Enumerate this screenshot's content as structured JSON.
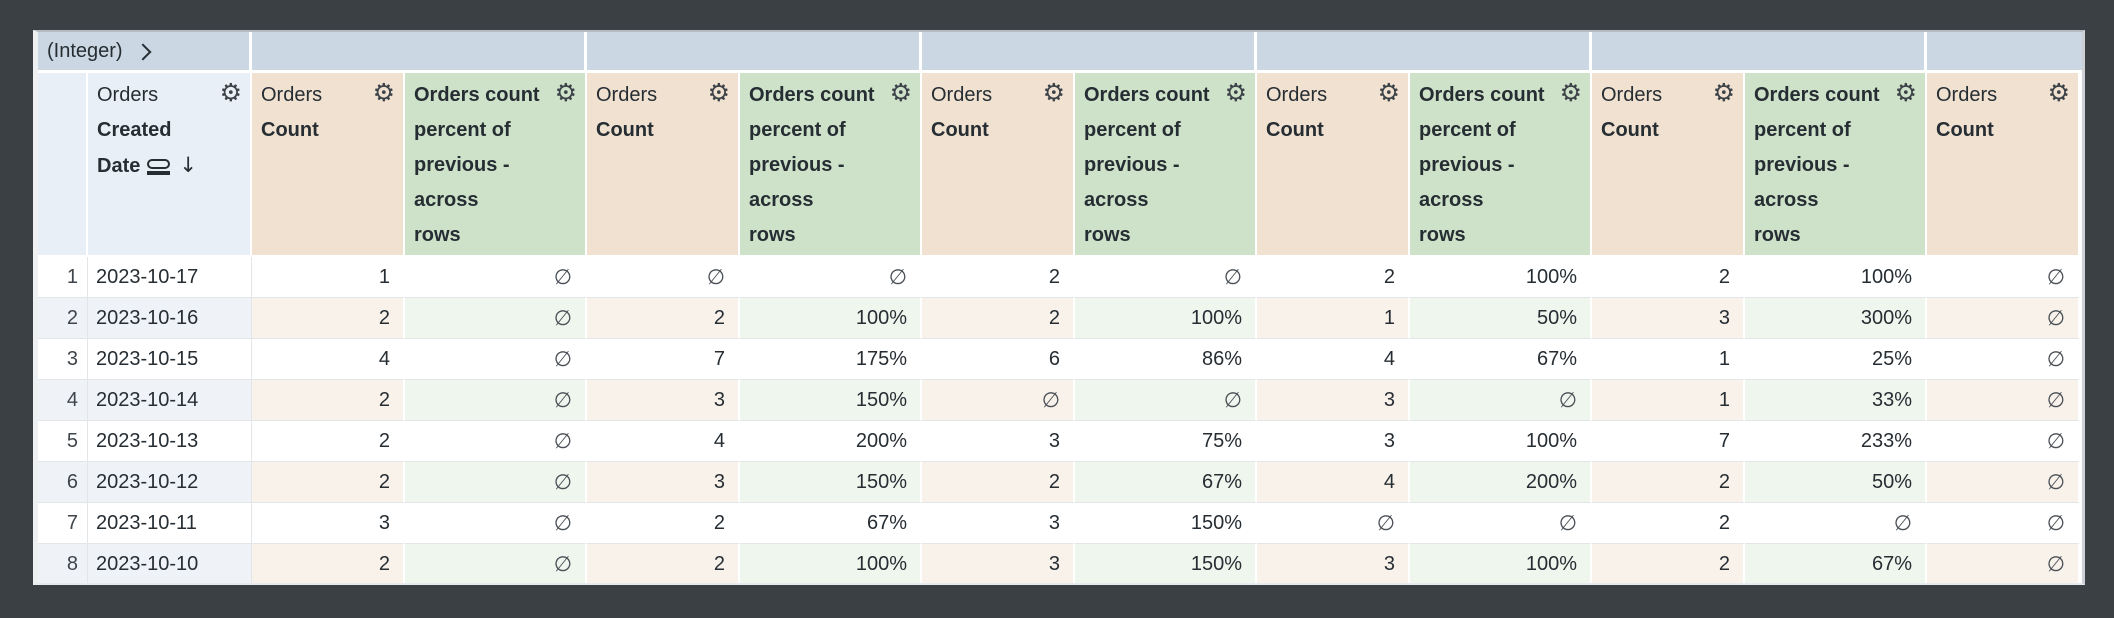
{
  "table": {
    "pivot": {
      "label": "(Integer)",
      "group_widths": [
        214,
        335,
        335,
        335,
        335,
        335,
        160
      ]
    },
    "header": {
      "dimension": {
        "view": "Orders",
        "field_lines": [
          "Created",
          "Date"
        ]
      },
      "measure": {
        "view": "Orders",
        "field": "Count"
      },
      "calc_lines": [
        "Orders count",
        "percent of",
        "previous -",
        "across",
        "rows"
      ]
    },
    "column_kinds": [
      "num",
      "date",
      "count",
      "pct",
      "count",
      "pct",
      "count",
      "pct",
      "count",
      "pct",
      "count",
      "pct",
      "count"
    ],
    "rows": [
      {
        "n": "1",
        "date": "2023-10-17",
        "values": [
          "1",
          "∅",
          "∅",
          "∅",
          "2",
          "∅",
          "2",
          "100%",
          "2",
          "100%",
          "∅"
        ]
      },
      {
        "n": "2",
        "date": "2023-10-16",
        "values": [
          "2",
          "∅",
          "2",
          "100%",
          "2",
          "100%",
          "1",
          "50%",
          "3",
          "300%",
          "∅"
        ]
      },
      {
        "n": "3",
        "date": "2023-10-15",
        "values": [
          "4",
          "∅",
          "7",
          "175%",
          "6",
          "86%",
          "4",
          "67%",
          "1",
          "25%",
          "∅"
        ]
      },
      {
        "n": "4",
        "date": "2023-10-14",
        "values": [
          "2",
          "∅",
          "3",
          "150%",
          "∅",
          "∅",
          "3",
          "∅",
          "1",
          "33%",
          "∅"
        ]
      },
      {
        "n": "5",
        "date": "2023-10-13",
        "values": [
          "2",
          "∅",
          "4",
          "200%",
          "3",
          "75%",
          "3",
          "100%",
          "7",
          "233%",
          "∅"
        ]
      },
      {
        "n": "6",
        "date": "2023-10-12",
        "values": [
          "2",
          "∅",
          "3",
          "150%",
          "2",
          "67%",
          "4",
          "200%",
          "2",
          "50%",
          "∅"
        ]
      },
      {
        "n": "7",
        "date": "2023-10-11",
        "values": [
          "3",
          "∅",
          "2",
          "67%",
          "3",
          "150%",
          "∅",
          "∅",
          "2",
          "∅",
          "∅"
        ]
      },
      {
        "n": "8",
        "date": "2023-10-10",
        "values": [
          "2",
          "∅",
          "2",
          "100%",
          "3",
          "150%",
          "3",
          "100%",
          "2",
          "67%",
          "∅"
        ]
      }
    ],
    "icons": {
      "gear": "⚙",
      "sort_desc": "↓"
    },
    "null_symbol": "∅",
    "colors": {
      "background": "#3b4045",
      "pivot_band": "#cbd7e2",
      "dimension_header": "#e9eff7",
      "measure_header": "#f0e1d0",
      "calc_header": "#cde2c9",
      "dimension_stripe": "#eff3f8",
      "measure_stripe": "#f9f2eb",
      "calc_stripe": "#eef6ee",
      "text": "#262d33"
    }
  }
}
